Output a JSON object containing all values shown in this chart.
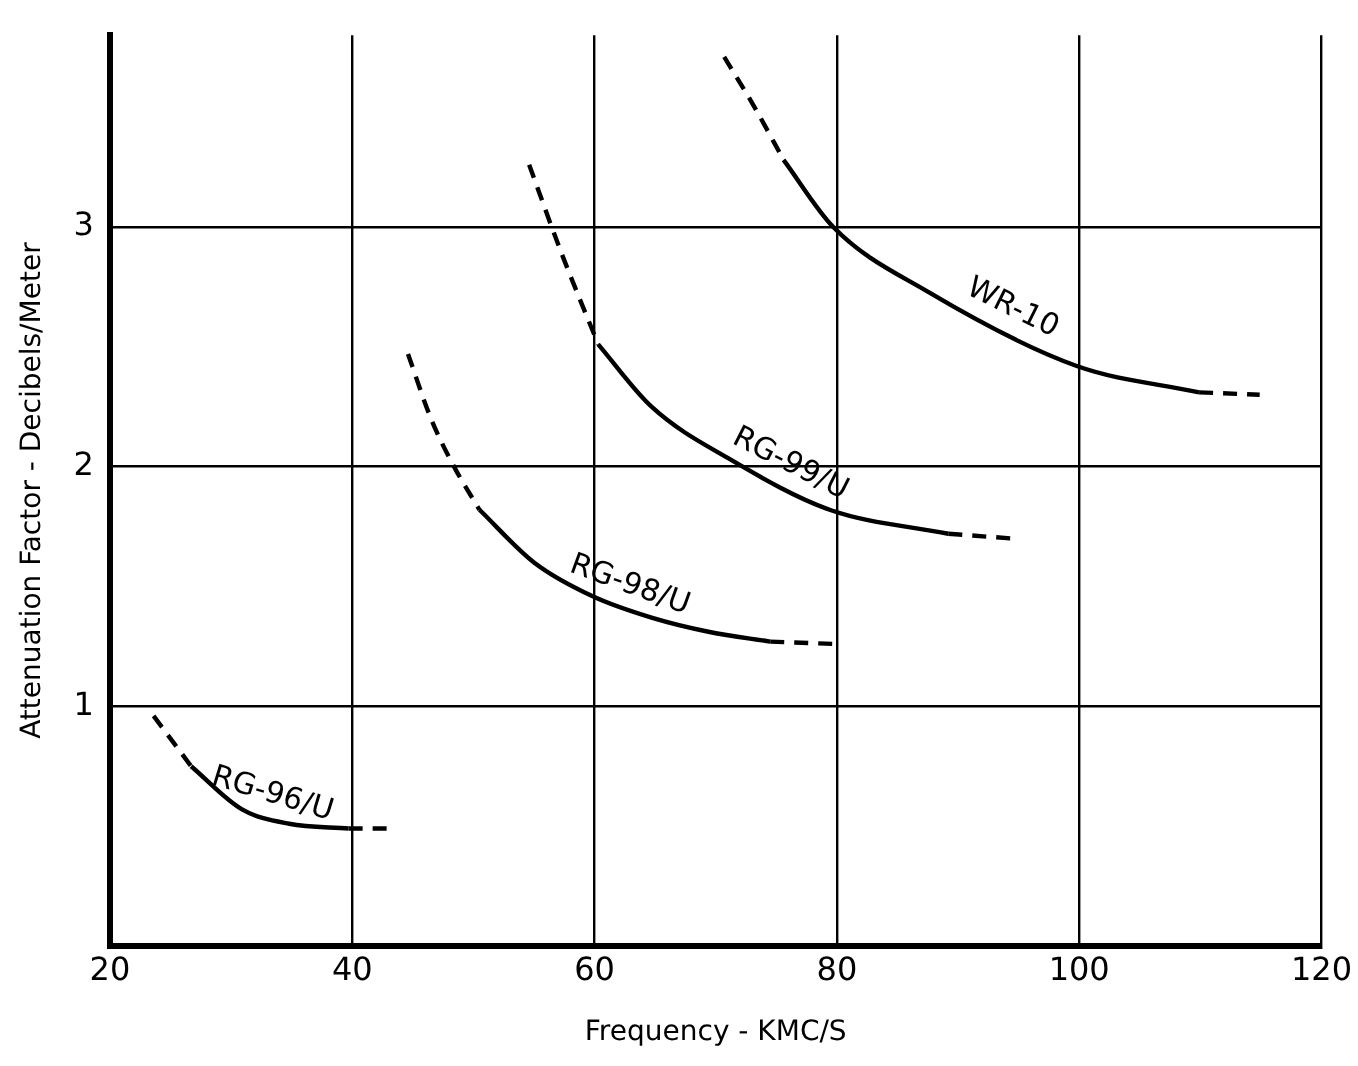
{
  "chart_data": {
    "type": "line",
    "xlabel": "Frequency - KMC/S",
    "ylabel": "Attenuation Factor - Decibels/Meter",
    "xlim": [
      20,
      120
    ],
    "xticks": [
      20,
      40,
      60,
      80,
      100,
      120
    ],
    "ylim": [
      0,
      3.8
    ],
    "yticks": [
      1,
      2,
      3
    ],
    "grid": true,
    "legend": false,
    "marker": "none",
    "series": [
      {
        "color": "#000000",
        "line_style": "dashed",
        "x": [
          23.6,
          26.7
        ],
        "values": [
          0.96,
          0.75
        ]
      },
      {
        "name": "RG-96/U",
        "color": "#000000",
        "line_style": "solid",
        "x": [
          26.7,
          30.9,
          34.8,
          39.7
        ],
        "values": [
          0.75,
          0.57,
          0.51,
          0.49
        ]
      },
      {
        "color": "#000000",
        "line_style": "dashed",
        "x": [
          39.7,
          43
        ],
        "values": [
          0.49,
          0.49
        ]
      },
      {
        "color": "#000000",
        "line_style": "dashed",
        "x": [
          44.6,
          46.5,
          48.4,
          50.5
        ],
        "values": [
          2.47,
          2.2,
          2.0,
          1.82
        ]
      },
      {
        "name": "RG-98/U",
        "color": "#000000",
        "line_style": "solid",
        "x": [
          50.5,
          55,
          59.8,
          64.7,
          69.5,
          74.5
        ],
        "values": [
          1.82,
          1.6,
          1.46,
          1.37,
          1.31,
          1.27
        ]
      },
      {
        "color": "#000000",
        "line_style": "dashed",
        "x": [
          74.5,
          80
        ],
        "values": [
          1.27,
          1.26
        ]
      },
      {
        "color": "#000000",
        "line_style": "dashed",
        "x": [
          54.6,
          57.2,
          60.3
        ],
        "values": [
          3.26,
          2.9,
          2.51
        ]
      },
      {
        "name": "RG-99/U",
        "color": "#000000",
        "line_style": "solid",
        "x": [
          60.3,
          64.7,
          71.2,
          79.4,
          89.2
        ],
        "values": [
          2.51,
          2.25,
          2.03,
          1.82,
          1.72
        ]
      },
      {
        "color": "#000000",
        "line_style": "dashed",
        "x": [
          89.2,
          94.5
        ],
        "values": [
          1.72,
          1.7
        ]
      },
      {
        "color": "#000000",
        "line_style": "dashed",
        "x": [
          70.7,
          73.2,
          75.6
        ],
        "values": [
          3.71,
          3.5,
          3.28
        ]
      },
      {
        "name": "WR-10",
        "color": "#000000",
        "line_style": "solid",
        "x": [
          75.6,
          79.7,
          87.5,
          99.8,
          109.9
        ],
        "values": [
          3.28,
          3.0,
          2.73,
          2.42,
          2.31
        ]
      },
      {
        "color": "#000000",
        "line_style": "dashed",
        "x": [
          109.9,
          114.9
        ],
        "values": [
          2.31,
          2.3
        ]
      }
    ]
  }
}
